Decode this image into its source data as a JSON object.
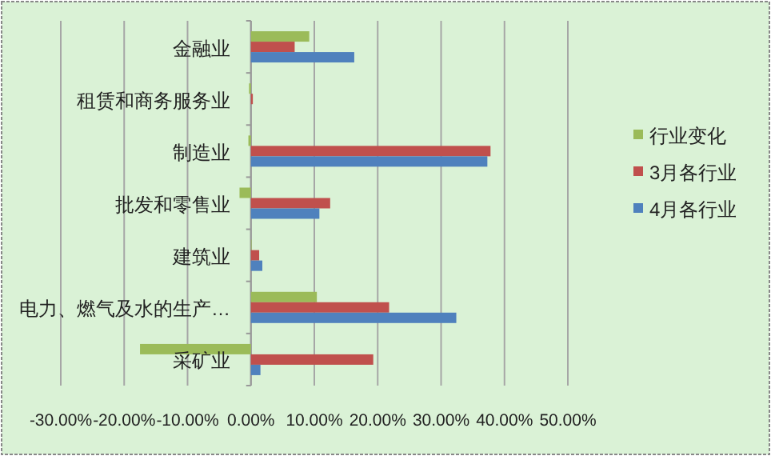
{
  "chart_data": {
    "type": "bar",
    "orientation": "horizontal",
    "categories": [
      "金融业",
      "租赁和商务服务业",
      "制造业",
      "批发和零售业",
      "建筑业",
      "电力、燃气及水的生产…",
      "采矿业"
    ],
    "series": [
      {
        "name": "行业变化",
        "color": "#9bbb59",
        "values": [
          9.2,
          -0.3,
          -0.4,
          -1.8,
          0.1,
          10.4,
          -17.5
        ]
      },
      {
        "name": "3月各行业",
        "color": "#c0504d",
        "values": [
          6.9,
          0.3,
          37.8,
          12.5,
          1.3,
          21.8,
          19.3
        ]
      },
      {
        "name": "4月各行业",
        "color": "#4f81bd",
        "values": [
          16.3,
          0,
          37.3,
          10.8,
          1.8,
          32.4,
          1.5
        ]
      }
    ],
    "xlim": [
      -30,
      50
    ],
    "xticks": [
      {
        "value": -30,
        "label": "-30.00%"
      },
      {
        "value": -20,
        "label": "-20.00%"
      },
      {
        "value": -10,
        "label": "-10.00%"
      },
      {
        "value": 0,
        "label": "0.00%"
      },
      {
        "value": 10,
        "label": "10.00%"
      },
      {
        "value": 20,
        "label": "20.00%"
      },
      {
        "value": 30,
        "label": "30.00%"
      },
      {
        "value": 40,
        "label": "40.00%"
      },
      {
        "value": 50,
        "label": "50.00%"
      }
    ],
    "grid": "x",
    "legend": "right"
  }
}
